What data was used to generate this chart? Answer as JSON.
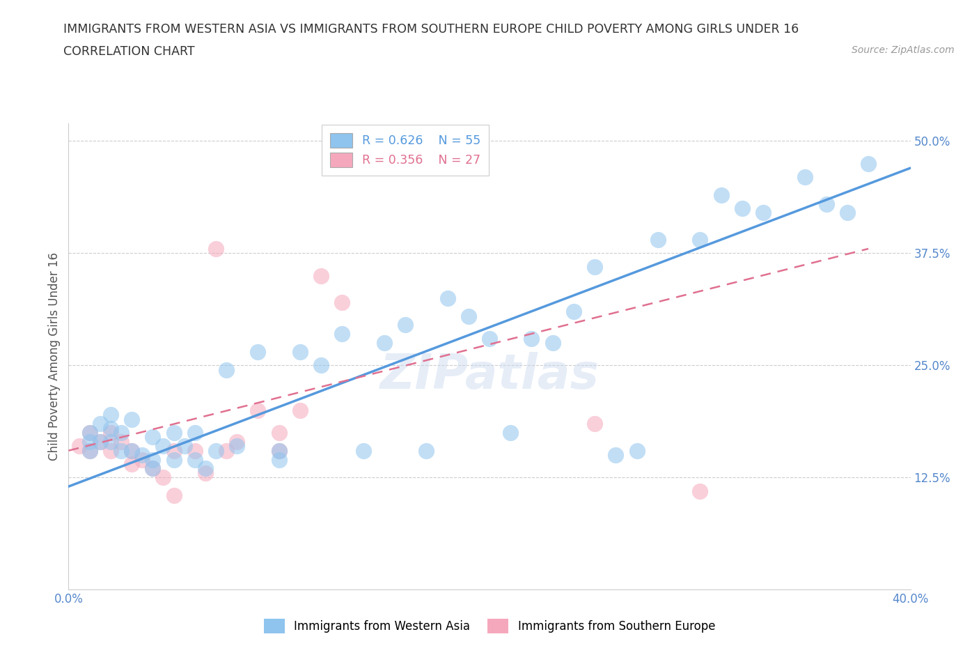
{
  "title_line1": "IMMIGRANTS FROM WESTERN ASIA VS IMMIGRANTS FROM SOUTHERN EUROPE CHILD POVERTY AMONG GIRLS UNDER 16",
  "title_line2": "CORRELATION CHART",
  "source": "Source: ZipAtlas.com",
  "ylabel": "Child Poverty Among Girls Under 16",
  "xlim": [
    0.0,
    0.4
  ],
  "ylim": [
    0.0,
    0.52
  ],
  "ytick_labels": [
    "12.5%",
    "25.0%",
    "37.5%",
    "50.0%"
  ],
  "yticks": [
    0.125,
    0.25,
    0.375,
    0.5
  ],
  "blue_R": 0.626,
  "blue_N": 55,
  "pink_R": 0.356,
  "pink_N": 27,
  "blue_color": "#8EC4EE",
  "pink_color": "#F5A8BC",
  "blue_line_color": "#5599DD",
  "pink_line_color": "#E07090",
  "watermark": "ZIPatlas",
  "blue_scatter_x": [
    0.01,
    0.01,
    0.01,
    0.015,
    0.015,
    0.02,
    0.02,
    0.02,
    0.025,
    0.025,
    0.03,
    0.03,
    0.035,
    0.04,
    0.04,
    0.04,
    0.045,
    0.05,
    0.05,
    0.055,
    0.06,
    0.06,
    0.065,
    0.07,
    0.075,
    0.08,
    0.09,
    0.1,
    0.1,
    0.11,
    0.12,
    0.13,
    0.14,
    0.15,
    0.16,
    0.17,
    0.18,
    0.19,
    0.2,
    0.21,
    0.22,
    0.23,
    0.24,
    0.25,
    0.26,
    0.27,
    0.28,
    0.3,
    0.31,
    0.32,
    0.33,
    0.35,
    0.36,
    0.37,
    0.38
  ],
  "blue_scatter_y": [
    0.175,
    0.165,
    0.155,
    0.185,
    0.165,
    0.195,
    0.18,
    0.165,
    0.175,
    0.155,
    0.19,
    0.155,
    0.15,
    0.17,
    0.145,
    0.135,
    0.16,
    0.175,
    0.145,
    0.16,
    0.175,
    0.145,
    0.135,
    0.155,
    0.245,
    0.16,
    0.265,
    0.145,
    0.155,
    0.265,
    0.25,
    0.285,
    0.155,
    0.275,
    0.295,
    0.155,
    0.325,
    0.305,
    0.28,
    0.175,
    0.28,
    0.275,
    0.31,
    0.36,
    0.15,
    0.155,
    0.39,
    0.39,
    0.44,
    0.425,
    0.42,
    0.46,
    0.43,
    0.42,
    0.475
  ],
  "pink_scatter_x": [
    0.005,
    0.01,
    0.01,
    0.015,
    0.02,
    0.02,
    0.025,
    0.03,
    0.03,
    0.035,
    0.04,
    0.045,
    0.05,
    0.05,
    0.06,
    0.065,
    0.07,
    0.075,
    0.08,
    0.09,
    0.1,
    0.1,
    0.11,
    0.12,
    0.13,
    0.25,
    0.3
  ],
  "pink_scatter_y": [
    0.16,
    0.175,
    0.155,
    0.165,
    0.175,
    0.155,
    0.165,
    0.155,
    0.14,
    0.145,
    0.135,
    0.125,
    0.155,
    0.105,
    0.155,
    0.13,
    0.38,
    0.155,
    0.165,
    0.2,
    0.155,
    0.175,
    0.2,
    0.35,
    0.32,
    0.185,
    0.11
  ],
  "blue_line_x": [
    0.0,
    0.4
  ],
  "blue_line_y": [
    0.115,
    0.47
  ],
  "pink_line_x": [
    0.0,
    0.38
  ],
  "pink_line_y": [
    0.155,
    0.38
  ]
}
